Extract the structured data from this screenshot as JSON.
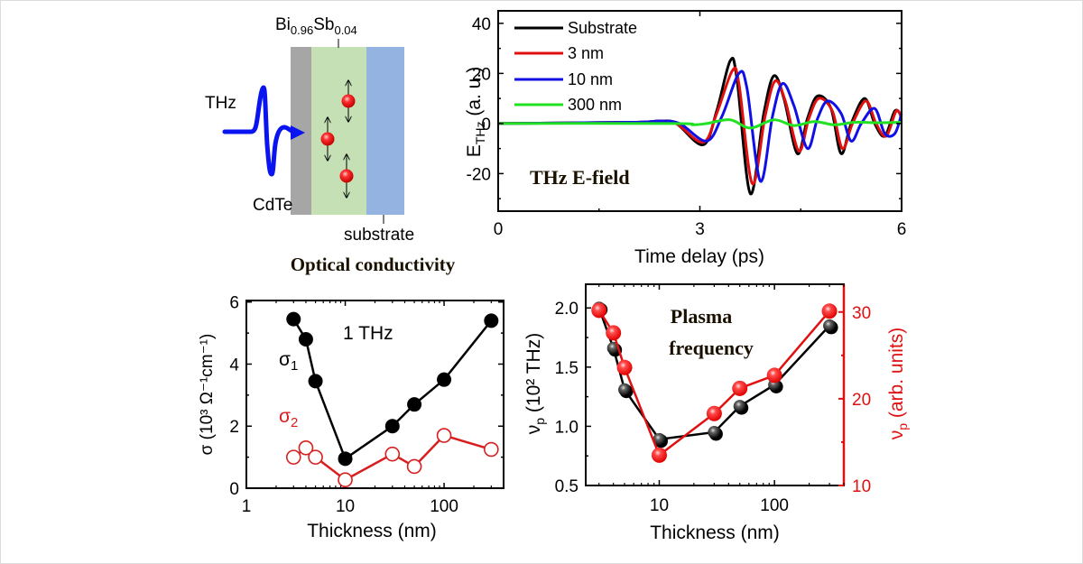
{
  "diagram": {
    "material_label": {
      "base1": "Bi",
      "sub1": "0.96",
      "base2": "Sb",
      "sub2": "0.04"
    },
    "thz_label": "THz",
    "cdte_label": "CdTe",
    "substrate_label": "substrate",
    "colors": {
      "cdte": "#a6a6a6",
      "film": "#c5e0b4",
      "substrate": "#95b3e0",
      "pulse": "#0a14f0",
      "carrier": "#e8141e"
    }
  },
  "chart_data": [
    {
      "id": "thz-efield",
      "type": "line",
      "title": "THz E-field",
      "xlabel": "Time delay (ps)",
      "ylabel": "E",
      "ylabel_sub": "THz",
      "ylabel_suffix": " (a. u.)",
      "xlim": [
        0,
        6
      ],
      "ylim": [
        -35,
        45
      ],
      "xticks": [
        0,
        3,
        6
      ],
      "xticks_minor": [
        1.5,
        4.5
      ],
      "yticks": [
        -20,
        0,
        20,
        40
      ],
      "yticks_minor": [
        -30,
        -10,
        10,
        30
      ],
      "legend": "top-left",
      "series": [
        {
          "name": "Substrate",
          "color": "#000000",
          "t0": 0,
          "amp": 1.0,
          "x": [
            0,
            2.0,
            2.4,
            2.65,
            3.05,
            3.25,
            3.45,
            3.55,
            3.75,
            3.95,
            4.1,
            4.25,
            4.45,
            4.6,
            4.75,
            4.95,
            5.1,
            5.25,
            5.45,
            5.6,
            5.75,
            5.9,
            6.0
          ],
          "y": [
            0,
            0.5,
            1,
            0,
            -8.5,
            5,
            25,
            18,
            -28,
            4,
            19,
            10,
            -12,
            2,
            11,
            6,
            -12,
            0,
            10,
            0,
            -5,
            5,
            3
          ]
        },
        {
          "name": "3 nm",
          "color": "#e01010",
          "t0": 0.02,
          "amp": 0.9,
          "x": [
            0,
            2.0,
            2.4,
            2.65,
            3.05,
            3.25,
            3.48,
            3.58,
            3.78,
            3.97,
            4.12,
            4.27,
            4.47,
            4.62,
            4.77,
            4.97,
            5.12,
            5.27,
            5.47,
            5.62,
            5.77,
            5.92,
            6.0
          ],
          "y": [
            0,
            0.5,
            1,
            0,
            -7.5,
            4,
            21,
            16,
            -24,
            3,
            17,
            9,
            -11,
            2,
            10,
            5,
            -10,
            0,
            9,
            0,
            -5,
            5,
            2
          ]
        },
        {
          "name": "10 nm",
          "color": "#1010e6",
          "t0": 0.1,
          "amp": 0.85,
          "x": [
            0,
            2.0,
            2.4,
            2.7,
            3.1,
            3.33,
            3.58,
            3.7,
            3.9,
            4.08,
            4.23,
            4.4,
            4.6,
            4.75,
            4.9,
            5.1,
            5.25,
            5.4,
            5.6,
            5.75,
            5.9,
            6.0
          ],
          "y": [
            0,
            0.5,
            1,
            0,
            -7,
            3,
            20,
            14,
            -23,
            3,
            16,
            7,
            -10,
            2,
            9,
            4,
            -7,
            0,
            6,
            -4,
            -4,
            4
          ]
        },
        {
          "name": "300 nm",
          "color": "#22e022",
          "t0": 0,
          "amp": 0.1,
          "x": [
            0,
            2.6,
            2.9,
            3.1,
            3.45,
            3.75,
            4.1,
            4.4,
            4.7,
            5.0,
            5.3,
            5.6,
            6.0
          ],
          "y": [
            0,
            0,
            -0.5,
            0,
            1.5,
            -1.8,
            1.5,
            -0.8,
            0.8,
            -0.5,
            0.5,
            0.3,
            0.5
          ]
        }
      ]
    },
    {
      "id": "optical-conductivity",
      "type": "scatter",
      "title": "Optical conductivity",
      "annotation": "1 THz",
      "xlabel": "Thickness (nm)",
      "ylabel": "σ (10³ Ω⁻¹cm⁻¹)",
      "xscale": "log",
      "xlim": [
        1,
        400
      ],
      "ylim": [
        0,
        6.05
      ],
      "xticks": [
        1,
        10,
        100
      ],
      "yticks": [
        0,
        2,
        4,
        6
      ],
      "yticks_minor": [
        1,
        3,
        5
      ],
      "series": [
        {
          "name": "σ₁",
          "label_base": "σ",
          "label_sub": "1",
          "color": "#000000",
          "filled": true,
          "x": [
            3,
            4,
            5,
            10,
            30,
            50,
            100,
            300
          ],
          "y": [
            5.45,
            4.8,
            3.45,
            0.95,
            2.0,
            2.7,
            3.5,
            5.4
          ]
        },
        {
          "name": "σ₂",
          "label_base": "σ",
          "label_sub": "2",
          "color": "#d81e1e",
          "filled": false,
          "x": [
            3,
            4,
            5,
            10,
            30,
            50,
            100,
            300
          ],
          "y": [
            1.0,
            1.3,
            1.0,
            0.27,
            1.1,
            0.7,
            1.7,
            1.25
          ]
        }
      ]
    },
    {
      "id": "plasma-frequency",
      "type": "scatter",
      "title": "Plasma frequency",
      "title_lines": [
        "Plasma",
        "frequency"
      ],
      "xlabel": "Thickness (nm)",
      "ylabel_left": "ν",
      "ylabel_left_sub": "p",
      "ylabel_left_suffix": " (10² THz)",
      "ylabel_right": "ν",
      "ylabel_right_sub": "p",
      "ylabel_right_suffix": " (arb. units)",
      "xscale": "log",
      "xlim": [
        2.3,
        400
      ],
      "ylim_left": [
        0.5,
        2.2
      ],
      "ylim_right": [
        10,
        33.2
      ],
      "xticks": [
        10,
        100
      ],
      "yticks_left": [
        0.5,
        1.0,
        1.5,
        2.0
      ],
      "yticks_left_labels": [
        "0.5",
        "1.0",
        "1.5",
        "2.0"
      ],
      "yticks_right": [
        10,
        20,
        30
      ],
      "yticks_right_minor": [
        15,
        25
      ],
      "right_axis_color": "#e01010",
      "series": [
        {
          "name": "ν_p (10² THz)",
          "axis": "left",
          "color": "#000000",
          "x": [
            3,
            4,
            5,
            10,
            30,
            50,
            100,
            300
          ],
          "y": [
            2.0,
            1.66,
            1.31,
            0.89,
            0.95,
            1.17,
            1.35,
            1.85
          ]
        },
        {
          "name": "ν_p (arb. units)",
          "axis": "right",
          "color": "#e01010",
          "x": [
            3,
            4,
            5,
            10,
            30,
            50,
            100,
            300
          ],
          "y": [
            30.2,
            27.6,
            23.6,
            13.5,
            18.3,
            21.2,
            22.7,
            30.1
          ]
        }
      ]
    }
  ]
}
